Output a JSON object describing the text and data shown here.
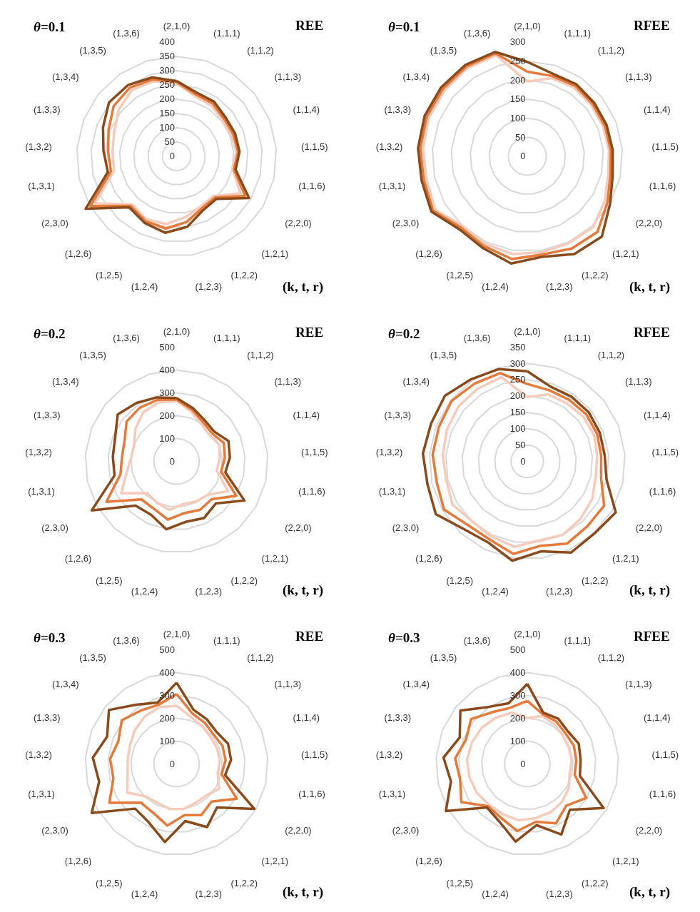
{
  "chart_data": [
    {
      "type": "radar",
      "title": "θ=0.1",
      "subtitle": "REE",
      "xlabel": "(k, t, r)",
      "categories": [
        "(2,1,0)",
        "(1,1,1)",
        "(1,1,2)",
        "(1,1,3)",
        "(1,1,4)",
        "(1,1,5)",
        "(1,1,6)",
        "(2,2,0)",
        "(1,2,1)",
        "(1,2,2)",
        "(1,2,3)",
        "(1,2,4)",
        "(1,2,5)",
        "(1,2,6)",
        "(2,3,0)",
        "(1,3,1)",
        "(1,3,2)",
        "(1,3,3)",
        "(1,3,4)",
        "(1,3,5)",
        "(1,3,6)"
      ],
      "ylim": [
        0,
        400
      ],
      "yticks": [
        0,
        50,
        100,
        150,
        200,
        250,
        300,
        350,
        400
      ],
      "grid": true,
      "series": [
        {
          "color": "#f6cbbb",
          "values": [
            255,
            220,
            215,
            205,
            205,
            210,
            200,
            260,
            190,
            195,
            215,
            240,
            245,
            230,
            330,
            225,
            225,
            235,
            260,
            280,
            275
          ]
        },
        {
          "color": "#e57a3a",
          "values": [
            260,
            227,
            224,
            212,
            213,
            216,
            206,
            277,
            197,
            203,
            233,
            256,
            252,
            237,
            349,
            236,
            241,
            256,
            282,
            291,
            282
          ]
        },
        {
          "color": "#8b4a1c",
          "values": [
            264,
            234,
            232,
            219,
            220,
            221,
            212,
            293,
            204,
            211,
            250,
            271,
            259,
            244,
            368,
            247,
            257,
            277,
            303,
            302,
            289
          ]
        }
      ]
    },
    {
      "type": "radar",
      "title": "θ=0.1",
      "subtitle": "RFEE",
      "xlabel": "(k, t, r)",
      "categories": [
        "(2,1,0)",
        "(1,1,1)",
        "(1,1,2)",
        "(1,1,3)",
        "(1,1,4)",
        "(1,1,5)",
        "(1,1,6)",
        "(2,2,0)",
        "(1,2,1)",
        "(1,2,2)",
        "(1,2,3)",
        "(1,2,4)",
        "(1,2,5)",
        "(1,2,6)",
        "(2,3,0)",
        "(1,3,1)",
        "(1,3,2)",
        "(1,3,3)",
        "(1,3,4)",
        "(1,3,5)",
        "(1,3,6)"
      ],
      "ylim": [
        0,
        300
      ],
      "yticks": [
        0,
        50,
        100,
        150,
        200,
        250,
        300
      ],
      "grid": true,
      "series": [
        {
          "color": "#f6cbbb",
          "values": [
            196,
            215,
            218,
            215,
            214,
            215,
            218,
            235,
            254,
            253,
            255,
            260,
            255,
            250,
            280,
            272,
            275,
            278,
            278,
            280,
            278
          ]
        },
        {
          "color": "#e57a3a",
          "values": [
            222,
            221,
            224,
            220,
            219,
            220,
            224,
            243,
            271,
            269,
            261,
            273,
            262,
            256,
            286,
            279,
            282,
            284,
            284,
            285,
            283
          ]
        },
        {
          "color": "#8b4a1c",
          "values": [
            248,
            227,
            229,
            225,
            224,
            225,
            230,
            251,
            288,
            285,
            267,
            285,
            268,
            262,
            291,
            285,
            288,
            290,
            290,
            290,
            287
          ]
        }
      ]
    },
    {
      "type": "radar",
      "title": "θ=0.2",
      "subtitle": "REE",
      "xlabel": "(k, t, r)",
      "categories": [
        "(2,1,0)",
        "(1,1,1)",
        "(1,1,2)",
        "(1,1,3)",
        "(1,1,4)",
        "(1,1,5)",
        "(1,1,6)",
        "(2,2,0)",
        "(1,2,1)",
        "(1,2,2)",
        "(1,2,3)",
        "(1,2,4)",
        "(1,2,5)",
        "(1,2,6)",
        "(2,3,0)",
        "(1,3,1)",
        "(1,3,2)",
        "(1,3,3)",
        "(1,3,4)",
        "(1,3,5)",
        "(1,3,6)"
      ],
      "ylim": [
        0,
        500
      ],
      "yticks": [
        0,
        100,
        200,
        300,
        400,
        500
      ],
      "grid": true,
      "series": [
        {
          "color": "#f6cbbb",
          "values": [
            265,
            225,
            195,
            185,
            200,
            190,
            180,
            260,
            200,
            195,
            190,
            215,
            200,
            190,
            280,
            225,
            200,
            200,
            230,
            260,
            270
          ]
        },
        {
          "color": "#e57a3a",
          "values": [
            271,
            235,
            207,
            198,
            222,
            212,
            200,
            302,
            226,
            236,
            229,
            258,
            230,
            227,
            355,
            252,
            240,
            245,
            280,
            285,
            282
          ]
        },
        {
          "color": "#8b4a1c",
          "values": [
            277,
            244,
            218,
            210,
            244,
            234,
            219,
            343,
            252,
            276,
            268,
            301,
            259,
            264,
            429,
            279,
            280,
            289,
            330,
            310,
            293
          ]
        }
      ]
    },
    {
      "type": "radar",
      "title": "θ=0.2",
      "subtitle": "RFEE",
      "xlabel": "(k, t, r)",
      "categories": [
        "(2,1,0)",
        "(1,1,1)",
        "(1,1,2)",
        "(1,1,3)",
        "(1,1,4)",
        "(1,1,5)",
        "(1,1,6)",
        "(2,2,0)",
        "(1,2,1)",
        "(1,2,2)",
        "(1,2,3)",
        "(1,2,4)",
        "(1,2,5)",
        "(1,2,6)",
        "(2,3,0)",
        "(1,3,1)",
        "(1,3,2)",
        "(1,3,3)",
        "(1,3,4)",
        "(1,3,5)",
        "(1,3,6)"
      ],
      "ylim": [
        0,
        350
      ],
      "yticks": [
        0,
        50,
        100,
        150,
        200,
        250,
        300,
        350
      ],
      "grid": true,
      "series": [
        {
          "color": "#f6cbbb",
          "values": [
            197,
            215,
            215,
            220,
            220,
            215,
            215,
            230,
            240,
            250,
            245,
            265,
            255,
            250,
            265,
            255,
            260,
            265,
            270,
            270,
            270
          ]
        },
        {
          "color": "#e57a3a",
          "values": [
            237,
            228,
            228,
            231,
            230,
            227,
            232,
            272,
            271,
            280,
            262,
            287,
            266,
            267,
            295,
            285,
            291,
            291,
            297,
            288,
            283
          ]
        },
        {
          "color": "#8b4a1c",
          "values": [
            276,
            240,
            240,
            241,
            239,
            238,
            249,
            313,
            302,
            310,
            279,
            308,
            276,
            284,
            324,
            314,
            321,
            317,
            323,
            305,
            296
          ]
        }
      ]
    },
    {
      "type": "radar",
      "title": "θ=0.3",
      "subtitle": "REE",
      "xlabel": "(k, t, r)",
      "categories": [
        "(2,1,0)",
        "(1,1,1)",
        "(1,1,2)",
        "(1,1,3)",
        "(1,1,4)",
        "(1,1,5)",
        "(1,1,6)",
        "(2,2,0)",
        "(1,2,1)",
        "(1,2,2)",
        "(1,2,3)",
        "(1,2,4)",
        "(1,2,5)",
        "(1,2,6)",
        "(2,3,0)",
        "(1,3,1)",
        "(1,3,2)",
        "(1,3,3)",
        "(1,3,4)",
        "(1,3,5)",
        "(1,3,6)"
      ],
      "ylim": [
        0,
        500
      ],
      "yticks": [
        0,
        100,
        200,
        300,
        400,
        500
      ],
      "grid": true,
      "series": [
        {
          "color": "#f6cbbb",
          "values": [
            255,
            215,
            200,
            190,
            190,
            190,
            185,
            215,
            190,
            190,
            200,
            200,
            190,
            195,
            250,
            220,
            215,
            220,
            235,
            250,
            260
          ]
        },
        {
          "color": "#e57a3a",
          "values": [
            306,
            232,
            218,
            207,
            216,
            215,
            202,
            304,
            225,
            249,
            227,
            273,
            237,
            231,
            340,
            284,
            292,
            274,
            307,
            282,
            271
          ]
        },
        {
          "color": "#8b4a1c",
          "values": [
            356,
            249,
            236,
            224,
            242,
            239,
            218,
            393,
            260,
            307,
            253,
            346,
            283,
            267,
            429,
            348,
            368,
            327,
            379,
            314,
            281
          ]
        }
      ]
    },
    {
      "type": "radar",
      "title": "θ=0.3",
      "subtitle": "RFEE",
      "xlabel": "(k, t, r)",
      "categories": [
        "(2,1,0)",
        "(1,1,1)",
        "(1,1,2)",
        "(1,1,3)",
        "(1,1,4)",
        "(1,1,5)",
        "(1,1,6)",
        "(2,2,0)",
        "(1,2,1)",
        "(1,2,2)",
        "(1,2,3)",
        "(1,2,4)",
        "(1,2,5)",
        "(1,2,6)",
        "(2,3,0)",
        "(1,3,1)",
        "(1,3,2)",
        "(1,3,3)",
        "(1,3,4)",
        "(1,3,5)",
        "(1,3,6)"
      ],
      "ylim": [
        0,
        500
      ],
      "yticks": [
        0,
        100,
        200,
        300,
        400,
        500
      ],
      "grid": true,
      "series": [
        {
          "color": "#f6cbbb",
          "values": [
            200,
            220,
            210,
            200,
            195,
            195,
            190,
            210,
            225,
            235,
            240,
            250,
            245,
            245,
            255,
            260,
            265,
            260,
            255,
            245,
            235
          ]
        },
        {
          "color": "#e57a3a",
          "values": [
            276,
            228,
            225,
            214,
            219,
            215,
            213,
            298,
            250,
            289,
            256,
            297,
            263,
            253,
            334,
            302,
            317,
            289,
            315,
            274,
            257
          ]
        },
        {
          "color": "#8b4a1c",
          "values": [
            351,
            235,
            240,
            228,
            242,
            234,
            236,
            386,
            274,
            343,
            271,
            344,
            281,
            260,
            412,
            343,
            368,
            318,
            375,
            302,
            278
          ]
        }
      ]
    }
  ]
}
